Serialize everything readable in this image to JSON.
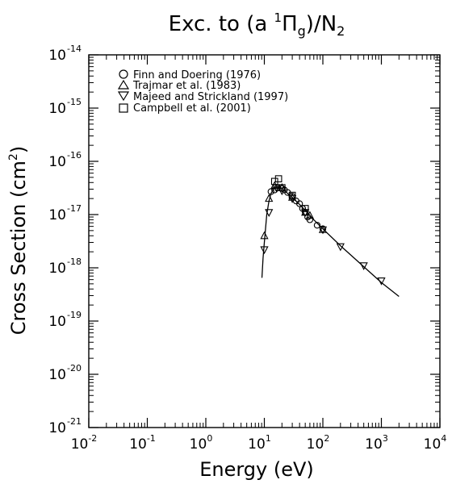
{
  "chart_data": {
    "type": "scatter",
    "title": {
      "prefix": "Exc. to (a ",
      "sup": "1",
      "symbol": "Π",
      "sub": "g",
      "suffix": ")/N",
      "suffix_sub": "2"
    },
    "xlabel": "Energy (eV)",
    "ylabel": {
      "main": "Cross Section (cm",
      "sup": "2",
      "end": ")"
    },
    "xscale": "log",
    "yscale": "log",
    "xlim": [
      0.01,
      10000
    ],
    "ylim": [
      1e-21,
      1e-14
    ],
    "xticks": [
      {
        "base": "10",
        "exp": "-2",
        "value": 0.01
      },
      {
        "base": "10",
        "exp": "-1",
        "value": 0.1
      },
      {
        "base": "10",
        "exp": "0",
        "value": 1
      },
      {
        "base": "10",
        "exp": "1",
        "value": 10
      },
      {
        "base": "10",
        "exp": "2",
        "value": 100
      },
      {
        "base": "10",
        "exp": "3",
        "value": 1000
      },
      {
        "base": "10",
        "exp": "4",
        "value": 10000
      }
    ],
    "yticks": [
      {
        "base": "10",
        "exp": "-21",
        "value": 1e-21
      },
      {
        "base": "10",
        "exp": "-20",
        "value": 1e-20
      },
      {
        "base": "10",
        "exp": "-19",
        "value": 1e-19
      },
      {
        "base": "10",
        "exp": "-18",
        "value": 1e-18
      },
      {
        "base": "10",
        "exp": "-17",
        "value": 1e-17
      },
      {
        "base": "10",
        "exp": "-16",
        "value": 1e-16
      },
      {
        "base": "10",
        "exp": "-15",
        "value": 1e-15
      },
      {
        "base": "10",
        "exp": "-14",
        "value": 1e-14
      }
    ],
    "grid": false,
    "legend_position": "top-left",
    "series": [
      {
        "name": "Finn and Doering (1976)",
        "marker": "circle",
        "points": [
          [
            13,
            2.7e-17
          ],
          [
            15,
            2.9e-17
          ],
          [
            17,
            3.2e-17
          ],
          [
            20,
            3.1e-17
          ],
          [
            22,
            2.9e-17
          ],
          [
            25,
            2.6e-17
          ],
          [
            30,
            2.2e-17
          ],
          [
            35,
            1.8e-17
          ],
          [
            40,
            1.6e-17
          ],
          [
            45,
            1.3e-17
          ],
          [
            50,
            1.1e-17
          ],
          [
            55,
            9e-18
          ],
          [
            60,
            8e-18
          ],
          [
            80,
            6.3e-18
          ],
          [
            100,
            5.4e-18
          ]
        ]
      },
      {
        "name": "Trajmar et al. (1983)",
        "marker": "triangle-up",
        "points": [
          [
            10,
            4e-18
          ],
          [
            12,
            2e-17
          ],
          [
            15,
            3.5e-17
          ],
          [
            20,
            3.2e-17
          ],
          [
            30,
            2.1e-17
          ],
          [
            50,
            1.1e-17
          ],
          [
            60,
            9.6e-18
          ],
          [
            100,
            5.2e-18
          ]
        ]
      },
      {
        "name": "Majeed and Strickland (1997)",
        "marker": "triangle-down",
        "points": [
          [
            10,
            2.2e-18
          ],
          [
            12,
            1.1e-17
          ],
          [
            16,
            3.2e-17
          ],
          [
            20,
            2.8e-17
          ],
          [
            30,
            2e-17
          ],
          [
            50,
            1.1e-17
          ],
          [
            100,
            5.2e-18
          ],
          [
            200,
            2.5e-18
          ],
          [
            500,
            1.1e-18
          ],
          [
            1000,
            5.7e-19
          ]
        ]
      },
      {
        "name": "Campbell et al. (2001)",
        "marker": "square",
        "points": [
          [
            15,
            4.2e-17
          ],
          [
            17.5,
            4.7e-17
          ],
          [
            20,
            3.2e-17
          ],
          [
            30,
            2.3e-17
          ],
          [
            50,
            1.3e-17
          ]
        ]
      }
    ],
    "fit_curve": {
      "points": [
        [
          9.1,
          6.5e-19
        ],
        [
          9.5,
          1.5e-18
        ],
        [
          10,
          3e-18
        ],
        [
          11,
          1e-17
        ],
        [
          12,
          1.8e-17
        ],
        [
          13,
          2.5e-17
        ],
        [
          15,
          3.2e-17
        ],
        [
          17,
          3.4e-17
        ],
        [
          20,
          3.1e-17
        ],
        [
          25,
          2.5e-17
        ],
        [
          30,
          2.1e-17
        ],
        [
          40,
          1.55e-17
        ],
        [
          50,
          1.2e-17
        ],
        [
          70,
          8e-18
        ],
        [
          100,
          5.4e-18
        ],
        [
          200,
          2.6e-18
        ],
        [
          500,
          1.05e-18
        ],
        [
          1000,
          5.3e-19
        ],
        [
          2000,
          2.9e-19
        ]
      ]
    }
  }
}
